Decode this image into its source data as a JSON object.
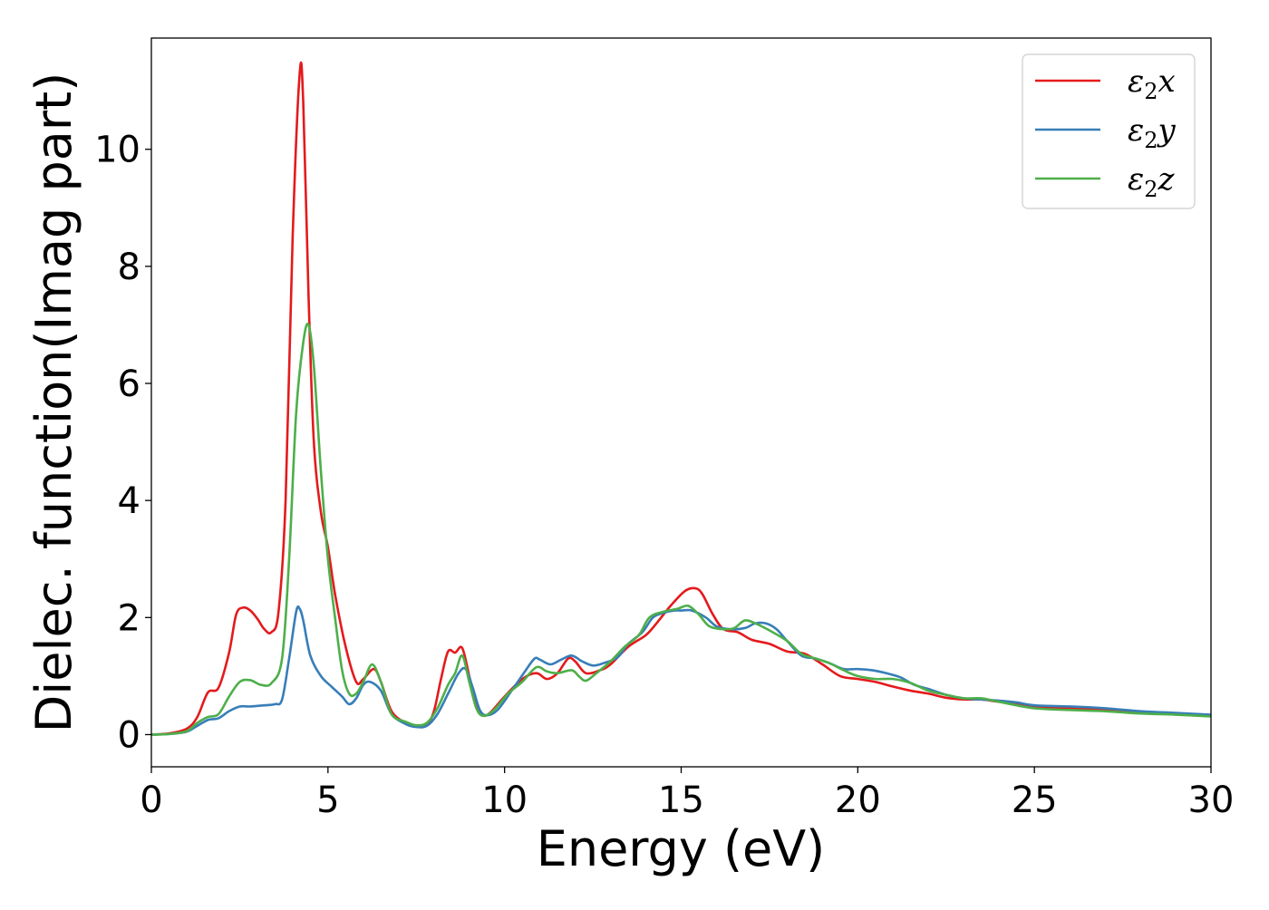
{
  "chart_data": {
    "type": "line",
    "title": "",
    "xlabel": "Energy (eV)",
    "ylabel": "Dielec. function(Imag part)",
    "xlim": [
      0,
      30
    ],
    "ylim": [
      -0.55,
      11.9
    ],
    "x_ticks": [
      0,
      5,
      10,
      15,
      20,
      25,
      30
    ],
    "y_ticks": [
      0,
      2,
      4,
      6,
      8,
      10
    ],
    "grid": false,
    "legend_position": "top-right",
    "series": [
      {
        "name": "ε₂x",
        "legend": {
          "base": "ε",
          "sub": "2",
          "axis": "x"
        },
        "color": "#e41a1c",
        "points": [
          [
            0,
            0
          ],
          [
            0.5,
            0.02
          ],
          [
            1.0,
            0.1
          ],
          [
            1.3,
            0.3
          ],
          [
            1.6,
            0.72
          ],
          [
            1.9,
            0.8
          ],
          [
            2.2,
            1.4
          ],
          [
            2.4,
            2.05
          ],
          [
            2.6,
            2.17
          ],
          [
            2.8,
            2.12
          ],
          [
            3.0,
            1.98
          ],
          [
            3.2,
            1.8
          ],
          [
            3.4,
            1.75
          ],
          [
            3.6,
            2.1
          ],
          [
            3.8,
            4.0
          ],
          [
            4.0,
            8.5
          ],
          [
            4.2,
            11.3
          ],
          [
            4.3,
            10.8
          ],
          [
            4.45,
            7.5
          ],
          [
            4.6,
            5.0
          ],
          [
            4.8,
            3.8
          ],
          [
            5.0,
            3.2
          ],
          [
            5.2,
            2.4
          ],
          [
            5.5,
            1.5
          ],
          [
            5.8,
            0.9
          ],
          [
            6.0,
            0.95
          ],
          [
            6.3,
            1.12
          ],
          [
            6.5,
            0.9
          ],
          [
            6.8,
            0.4
          ],
          [
            7.2,
            0.2
          ],
          [
            7.5,
            0.15
          ],
          [
            7.8,
            0.18
          ],
          [
            8.0,
            0.4
          ],
          [
            8.2,
            0.95
          ],
          [
            8.4,
            1.42
          ],
          [
            8.6,
            1.4
          ],
          [
            8.8,
            1.48
          ],
          [
            9.0,
            1.0
          ],
          [
            9.2,
            0.5
          ],
          [
            9.4,
            0.33
          ],
          [
            9.6,
            0.38
          ],
          [
            10.0,
            0.65
          ],
          [
            10.5,
            0.95
          ],
          [
            10.9,
            1.05
          ],
          [
            11.2,
            0.95
          ],
          [
            11.5,
            1.05
          ],
          [
            11.8,
            1.3
          ],
          [
            12.0,
            1.25
          ],
          [
            12.3,
            1.05
          ],
          [
            12.7,
            1.1
          ],
          [
            13.0,
            1.2
          ],
          [
            13.5,
            1.5
          ],
          [
            14.0,
            1.7
          ],
          [
            14.3,
            1.9
          ],
          [
            14.7,
            2.2
          ],
          [
            15.1,
            2.45
          ],
          [
            15.4,
            2.5
          ],
          [
            15.6,
            2.4
          ],
          [
            15.9,
            2.05
          ],
          [
            16.2,
            1.8
          ],
          [
            16.6,
            1.75
          ],
          [
            17.0,
            1.62
          ],
          [
            17.5,
            1.55
          ],
          [
            18.0,
            1.42
          ],
          [
            18.5,
            1.38
          ],
          [
            19.0,
            1.2
          ],
          [
            19.5,
            1.0
          ],
          [
            20.0,
            0.95
          ],
          [
            20.5,
            0.9
          ],
          [
            21.0,
            0.82
          ],
          [
            21.5,
            0.75
          ],
          [
            22.0,
            0.7
          ],
          [
            22.5,
            0.63
          ],
          [
            23.0,
            0.6
          ],
          [
            23.5,
            0.6
          ],
          [
            24.0,
            0.56
          ],
          [
            24.5,
            0.53
          ],
          [
            25.0,
            0.48
          ],
          [
            26.0,
            0.45
          ],
          [
            27.0,
            0.42
          ],
          [
            28.0,
            0.37
          ],
          [
            29.0,
            0.35
          ],
          [
            30.0,
            0.32
          ]
        ]
      },
      {
        "name": "ε₂y",
        "legend": {
          "base": "ε",
          "sub": "2",
          "axis": "y"
        },
        "color": "#377eb8",
        "points": [
          [
            0,
            0
          ],
          [
            0.5,
            0.01
          ],
          [
            1.0,
            0.05
          ],
          [
            1.3,
            0.15
          ],
          [
            1.6,
            0.25
          ],
          [
            1.9,
            0.28
          ],
          [
            2.2,
            0.4
          ],
          [
            2.5,
            0.48
          ],
          [
            2.8,
            0.48
          ],
          [
            3.2,
            0.5
          ],
          [
            3.5,
            0.52
          ],
          [
            3.7,
            0.6
          ],
          [
            3.9,
            1.3
          ],
          [
            4.1,
            2.1
          ],
          [
            4.2,
            2.15
          ],
          [
            4.3,
            1.95
          ],
          [
            4.5,
            1.35
          ],
          [
            4.8,
            1.0
          ],
          [
            5.1,
            0.82
          ],
          [
            5.4,
            0.65
          ],
          [
            5.6,
            0.52
          ],
          [
            5.8,
            0.62
          ],
          [
            6.0,
            0.85
          ],
          [
            6.2,
            0.9
          ],
          [
            6.5,
            0.75
          ],
          [
            6.8,
            0.35
          ],
          [
            7.2,
            0.18
          ],
          [
            7.5,
            0.13
          ],
          [
            7.8,
            0.15
          ],
          [
            8.1,
            0.35
          ],
          [
            8.4,
            0.7
          ],
          [
            8.7,
            1.05
          ],
          [
            8.9,
            1.12
          ],
          [
            9.1,
            0.8
          ],
          [
            9.3,
            0.42
          ],
          [
            9.5,
            0.33
          ],
          [
            9.8,
            0.42
          ],
          [
            10.2,
            0.75
          ],
          [
            10.6,
            1.1
          ],
          [
            10.85,
            1.3
          ],
          [
            11.0,
            1.28
          ],
          [
            11.3,
            1.2
          ],
          [
            11.6,
            1.28
          ],
          [
            11.9,
            1.35
          ],
          [
            12.2,
            1.25
          ],
          [
            12.5,
            1.18
          ],
          [
            12.8,
            1.22
          ],
          [
            13.2,
            1.32
          ],
          [
            13.5,
            1.55
          ],
          [
            13.9,
            1.75
          ],
          [
            14.2,
            2.0
          ],
          [
            14.5,
            2.08
          ],
          [
            14.8,
            2.12
          ],
          [
            15.0,
            2.12
          ],
          [
            15.3,
            2.12
          ],
          [
            15.7,
            2.0
          ],
          [
            16.0,
            1.85
          ],
          [
            16.4,
            1.8
          ],
          [
            16.8,
            1.82
          ],
          [
            17.1,
            1.9
          ],
          [
            17.4,
            1.9
          ],
          [
            17.7,
            1.8
          ],
          [
            18.0,
            1.6
          ],
          [
            18.4,
            1.35
          ],
          [
            18.8,
            1.3
          ],
          [
            19.2,
            1.22
          ],
          [
            19.6,
            1.12
          ],
          [
            20.0,
            1.12
          ],
          [
            20.4,
            1.1
          ],
          [
            20.8,
            1.05
          ],
          [
            21.2,
            0.98
          ],
          [
            21.6,
            0.85
          ],
          [
            22.0,
            0.78
          ],
          [
            22.5,
            0.68
          ],
          [
            23.0,
            0.62
          ],
          [
            23.5,
            0.6
          ],
          [
            24.0,
            0.58
          ],
          [
            24.5,
            0.55
          ],
          [
            25.0,
            0.5
          ],
          [
            26.0,
            0.48
          ],
          [
            27.0,
            0.45
          ],
          [
            28.0,
            0.4
          ],
          [
            29.0,
            0.37
          ],
          [
            30.0,
            0.34
          ]
        ]
      },
      {
        "name": "ε₂z",
        "legend": {
          "base": "ε",
          "sub": "2",
          "axis": "z"
        },
        "color": "#4daf4a",
        "points": [
          [
            0,
            0
          ],
          [
            0.5,
            0.01
          ],
          [
            1.0,
            0.06
          ],
          [
            1.3,
            0.2
          ],
          [
            1.6,
            0.3
          ],
          [
            1.9,
            0.35
          ],
          [
            2.2,
            0.65
          ],
          [
            2.5,
            0.9
          ],
          [
            2.8,
            0.93
          ],
          [
            3.1,
            0.85
          ],
          [
            3.4,
            0.88
          ],
          [
            3.7,
            1.3
          ],
          [
            3.9,
            3.0
          ],
          [
            4.1,
            5.5
          ],
          [
            4.3,
            6.7
          ],
          [
            4.45,
            7.0
          ],
          [
            4.6,
            6.3
          ],
          [
            4.8,
            4.5
          ],
          [
            5.0,
            3.0
          ],
          [
            5.2,
            2.0
          ],
          [
            5.4,
            1.1
          ],
          [
            5.6,
            0.7
          ],
          [
            5.8,
            0.7
          ],
          [
            6.0,
            0.9
          ],
          [
            6.25,
            1.2
          ],
          [
            6.5,
            0.9
          ],
          [
            6.8,
            0.35
          ],
          [
            7.2,
            0.22
          ],
          [
            7.5,
            0.16
          ],
          [
            7.8,
            0.2
          ],
          [
            8.1,
            0.45
          ],
          [
            8.4,
            0.85
          ],
          [
            8.6,
            1.05
          ],
          [
            8.8,
            1.35
          ],
          [
            9.0,
            0.9
          ],
          [
            9.2,
            0.45
          ],
          [
            9.4,
            0.32
          ],
          [
            9.7,
            0.42
          ],
          [
            10.1,
            0.7
          ],
          [
            10.5,
            0.9
          ],
          [
            10.9,
            1.15
          ],
          [
            11.2,
            1.08
          ],
          [
            11.5,
            1.05
          ],
          [
            11.9,
            1.1
          ],
          [
            12.1,
            1.0
          ],
          [
            12.3,
            0.92
          ],
          [
            12.6,
            1.05
          ],
          [
            13.0,
            1.25
          ],
          [
            13.4,
            1.5
          ],
          [
            13.8,
            1.7
          ],
          [
            14.1,
            2.0
          ],
          [
            14.5,
            2.1
          ],
          [
            14.9,
            2.15
          ],
          [
            15.2,
            2.2
          ],
          [
            15.5,
            2.05
          ],
          [
            15.8,
            1.85
          ],
          [
            16.2,
            1.8
          ],
          [
            16.5,
            1.82
          ],
          [
            16.8,
            1.95
          ],
          [
            17.1,
            1.9
          ],
          [
            17.5,
            1.78
          ],
          [
            18.0,
            1.6
          ],
          [
            18.4,
            1.38
          ],
          [
            18.8,
            1.3
          ],
          [
            19.2,
            1.22
          ],
          [
            19.6,
            1.1
          ],
          [
            20.0,
            1.0
          ],
          [
            20.5,
            0.95
          ],
          [
            21.0,
            0.95
          ],
          [
            21.5,
            0.88
          ],
          [
            22.0,
            0.75
          ],
          [
            22.5,
            0.68
          ],
          [
            23.0,
            0.62
          ],
          [
            23.5,
            0.62
          ],
          [
            24.0,
            0.56
          ],
          [
            25.0,
            0.45
          ],
          [
            26.0,
            0.42
          ],
          [
            27.0,
            0.4
          ],
          [
            28.0,
            0.36
          ],
          [
            29.0,
            0.34
          ],
          [
            30.0,
            0.31
          ]
        ]
      }
    ]
  }
}
